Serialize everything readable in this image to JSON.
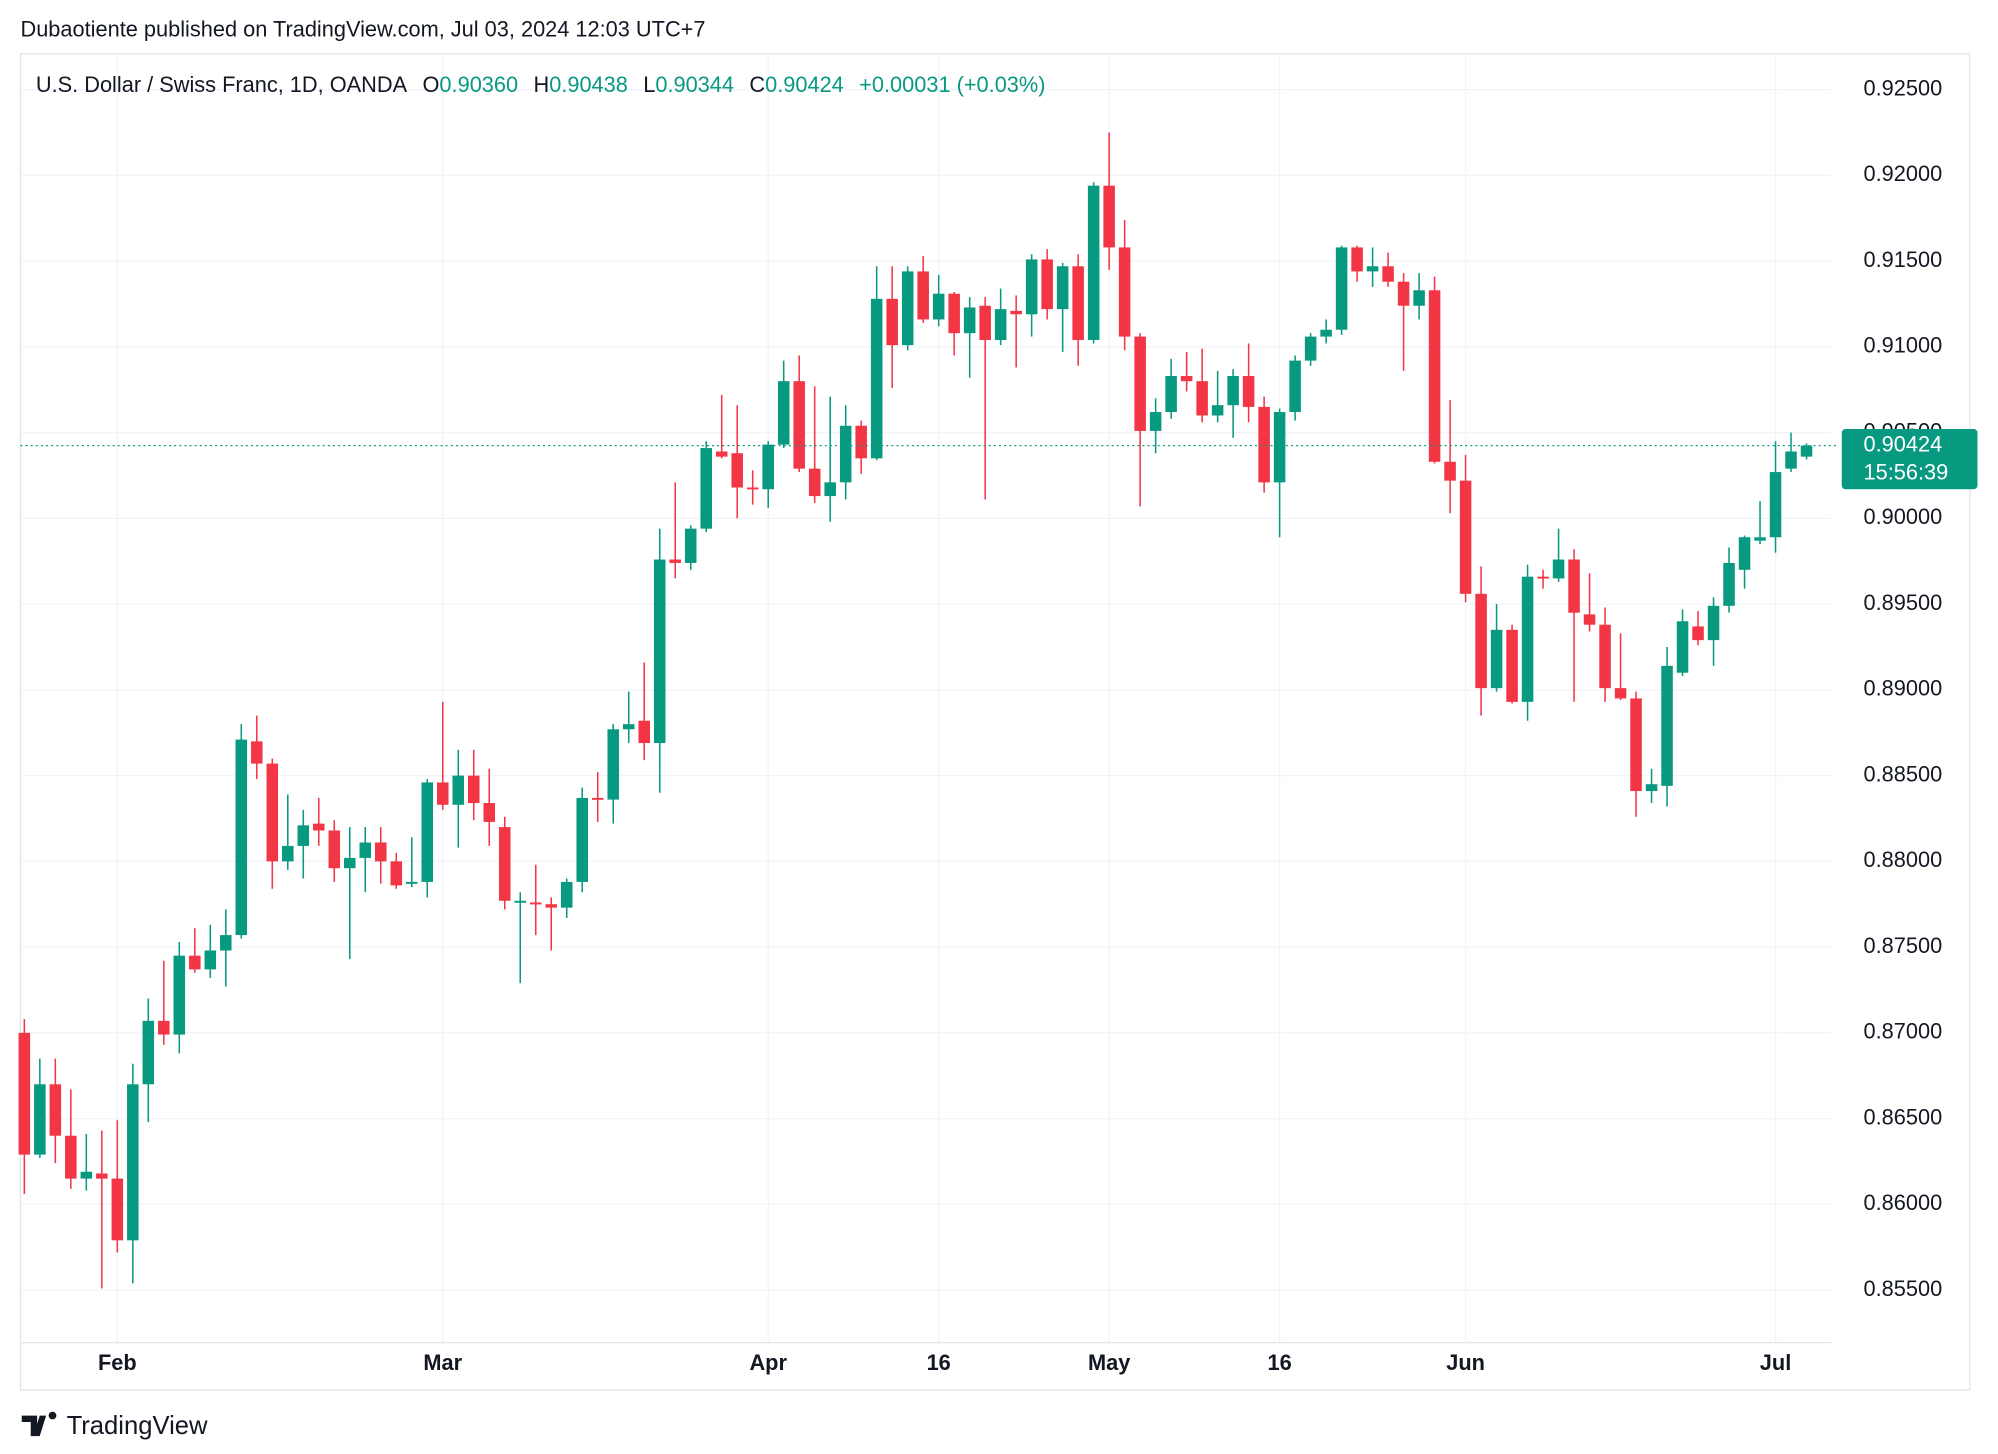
{
  "publisher": "Dubaotiente published on TradingView.com, Jul 03, 2024 12:03 UTC+7",
  "branding": "TradingView",
  "chart_data": {
    "type": "candlestick",
    "title": "U.S. Dollar / Swiss Franc, 1D, OANDA",
    "ohlc_legend": [
      {
        "key": "O",
        "label": "0.90360"
      },
      {
        "key": "H",
        "label": "0.90438"
      },
      {
        "key": "L",
        "label": "0.90344"
      },
      {
        "key": "C",
        "label": "0.90424"
      }
    ],
    "change": "+0.00031 (+0.03%)",
    "last_price": {
      "value": 0.90424,
      "label": "0.90424"
    },
    "countdown": "15:56:39",
    "up_color": "#089981",
    "down_color": "#f23645",
    "grid": true,
    "categories": [
      null,
      null,
      null,
      null,
      null,
      null,
      "Feb",
      null,
      null,
      null,
      null,
      null,
      null,
      null,
      null,
      null,
      null,
      null,
      null,
      null,
      null,
      null,
      null,
      null,
      null,
      null,
      null,
      "Mar",
      null,
      null,
      null,
      null,
      null,
      null,
      null,
      null,
      null,
      null,
      null,
      null,
      null,
      null,
      null,
      null,
      null,
      null,
      null,
      null,
      "Apr",
      null,
      null,
      null,
      null,
      null,
      null,
      null,
      null,
      null,
      null,
      "16",
      null,
      null,
      null,
      null,
      null,
      null,
      null,
      null,
      null,
      null,
      "May",
      null,
      null,
      null,
      null,
      null,
      null,
      null,
      null,
      null,
      null,
      "16",
      null,
      null,
      null,
      null,
      null,
      null,
      null,
      null,
      null,
      null,
      null,
      "Jun",
      null,
      null,
      null,
      null,
      null,
      null,
      null,
      null,
      null,
      null,
      null,
      null,
      null,
      null,
      null,
      null,
      null,
      null,
      null,
      "Jul",
      null,
      null
    ],
    "open": [
      0.87,
      0.8629,
      0.867,
      0.864,
      0.8615,
      0.8618,
      0.8615,
      0.8579,
      0.867,
      0.8707,
      0.8699,
      0.8745,
      0.8737,
      0.8748,
      0.8757,
      0.887,
      0.8857,
      0.88,
      0.8809,
      0.8822,
      0.8818,
      0.8796,
      0.8802,
      0.8811,
      0.88,
      0.8787,
      0.8788,
      0.8846,
      0.8833,
      0.885,
      0.8834,
      0.882,
      0.8776,
      0.8776,
      0.8775,
      0.8773,
      0.8788,
      0.8837,
      0.8836,
      0.8877,
      0.8882,
      0.8869,
      0.8976,
      0.8974,
      0.8994,
      0.9039,
      0.9038,
      0.9018,
      0.9017,
      0.9043,
      0.908,
      0.9029,
      0.9013,
      0.9021,
      0.9054,
      0.9035,
      0.9128,
      0.9101,
      0.9144,
      0.9116,
      0.9131,
      0.9108,
      0.9124,
      0.9104,
      0.9121,
      0.9119,
      0.9151,
      0.9122,
      0.9147,
      0.9104,
      0.9194,
      0.9158,
      0.9106,
      0.9051,
      0.9062,
      0.9083,
      0.908,
      0.906,
      0.9066,
      0.9083,
      0.9065,
      0.9021,
      0.9062,
      0.9092,
      0.9106,
      0.911,
      0.9158,
      0.9144,
      0.9147,
      0.9138,
      0.9124,
      0.9133,
      0.9033,
      0.9022,
      0.8956,
      0.8901,
      0.8935,
      0.8893,
      0.8966,
      0.8965,
      0.8976,
      0.8944,
      0.8938,
      0.8901,
      0.8895,
      0.8841,
      0.8844,
      0.891,
      0.8937,
      0.8929,
      0.8949,
      0.897,
      0.8987,
      0.8989,
      0.9029,
      0.9036
    ],
    "high": [
      0.8708,
      0.8685,
      0.8685,
      0.8667,
      0.8641,
      0.8643,
      0.8649,
      0.8682,
      0.872,
      0.8742,
      0.8753,
      0.8761,
      0.8763,
      0.8772,
      0.888,
      0.8885,
      0.886,
      0.8839,
      0.883,
      0.8837,
      0.8824,
      0.882,
      0.882,
      0.882,
      0.8805,
      0.8814,
      0.8848,
      0.8893,
      0.8865,
      0.8865,
      0.8854,
      0.8826,
      0.8782,
      0.8798,
      0.8779,
      0.879,
      0.8843,
      0.8852,
      0.888,
      0.8899,
      0.8916,
      0.8994,
      0.9021,
      0.8996,
      0.9045,
      0.9072,
      0.9066,
      0.9028,
      0.9045,
      0.9092,
      0.9095,
      0.9077,
      0.9071,
      0.9066,
      0.9057,
      0.9147,
      0.9147,
      0.9147,
      0.9153,
      0.9142,
      0.9132,
      0.9129,
      0.9129,
      0.9134,
      0.913,
      0.9154,
      0.9157,
      0.9149,
      0.9154,
      0.9196,
      0.9225,
      0.9174,
      0.9108,
      0.907,
      0.9093,
      0.9097,
      0.9099,
      0.9086,
      0.9087,
      0.9102,
      0.9071,
      0.9064,
      0.9095,
      0.9108,
      0.9116,
      0.9159,
      0.9159,
      0.9158,
      0.9155,
      0.9143,
      0.9143,
      0.9141,
      0.9069,
      0.9037,
      0.8972,
      0.895,
      0.8938,
      0.8973,
      0.897,
      0.8994,
      0.8982,
      0.8968,
      0.8948,
      0.8933,
      0.8899,
      0.8854,
      0.8925,
      0.8947,
      0.8946,
      0.8954,
      0.8983,
      0.899,
      0.901,
      0.9045,
      0.905,
      0.90438
    ],
    "low": [
      0.8606,
      0.8627,
      0.8624,
      0.8609,
      0.8608,
      0.8551,
      0.8572,
      0.8554,
      0.8648,
      0.8693,
      0.8688,
      0.8735,
      0.8732,
      0.8727,
      0.8755,
      0.8848,
      0.8784,
      0.8795,
      0.879,
      0.8809,
      0.8788,
      0.8743,
      0.8782,
      0.8787,
      0.8784,
      0.8785,
      0.8779,
      0.883,
      0.8808,
      0.8824,
      0.8809,
      0.8772,
      0.8729,
      0.8757,
      0.8748,
      0.8767,
      0.8782,
      0.8823,
      0.8822,
      0.8869,
      0.8859,
      0.884,
      0.8965,
      0.897,
      0.8992,
      0.9035,
      0.9,
      0.9008,
      0.9006,
      0.9041,
      0.9027,
      0.9009,
      0.8998,
      0.9011,
      0.9026,
      0.9034,
      0.9076,
      0.9098,
      0.9114,
      0.9112,
      0.9095,
      0.9082,
      0.9011,
      0.9101,
      0.9088,
      0.9106,
      0.9116,
      0.9097,
      0.9089,
      0.9102,
      0.9145,
      0.9098,
      0.9007,
      0.9038,
      0.9058,
      0.9074,
      0.9056,
      0.9056,
      0.9047,
      0.9056,
      0.9015,
      0.8989,
      0.9057,
      0.9089,
      0.9102,
      0.9107,
      0.9138,
      0.9135,
      0.9135,
      0.9086,
      0.9116,
      0.9032,
      0.9003,
      0.8951,
      0.8885,
      0.8899,
      0.8892,
      0.8882,
      0.8959,
      0.8963,
      0.8893,
      0.8934,
      0.8893,
      0.8894,
      0.8826,
      0.8834,
      0.8832,
      0.8908,
      0.8926,
      0.8914,
      0.8945,
      0.8959,
      0.8985,
      0.898,
      0.9027,
      0.90344
    ],
    "close": [
      0.8629,
      0.867,
      0.864,
      0.8615,
      0.8619,
      0.8615,
      0.8579,
      0.867,
      0.8707,
      0.8699,
      0.8745,
      0.8737,
      0.8748,
      0.8757,
      0.8871,
      0.8857,
      0.88,
      0.8809,
      0.8821,
      0.8818,
      0.8796,
      0.8802,
      0.8811,
      0.88,
      0.8786,
      0.8788,
      0.8846,
      0.8833,
      0.885,
      0.8834,
      0.8823,
      0.8777,
      0.8777,
      0.8775,
      0.8773,
      0.8788,
      0.8837,
      0.8836,
      0.8877,
      0.888,
      0.8869,
      0.8976,
      0.8974,
      0.8994,
      0.9041,
      0.9036,
      0.9018,
      0.9017,
      0.9043,
      0.908,
      0.9029,
      0.9013,
      0.9021,
      0.9054,
      0.9035,
      0.9128,
      0.9101,
      0.9144,
      0.9116,
      0.9131,
      0.9108,
      0.9123,
      0.9104,
      0.9122,
      0.9119,
      0.9151,
      0.9122,
      0.9147,
      0.9104,
      0.9194,
      0.9158,
      0.9106,
      0.9051,
      0.9062,
      0.9083,
      0.908,
      0.906,
      0.9066,
      0.9083,
      0.9065,
      0.9021,
      0.9062,
      0.9092,
      0.9106,
      0.911,
      0.9158,
      0.9144,
      0.9147,
      0.9138,
      0.9124,
      0.9133,
      0.9033,
      0.9022,
      0.8956,
      0.8901,
      0.8935,
      0.8893,
      0.8966,
      0.8965,
      0.8976,
      0.8945,
      0.8938,
      0.8901,
      0.8895,
      0.8841,
      0.8845,
      0.8914,
      0.894,
      0.8929,
      0.8949,
      0.8974,
      0.8989,
      0.8989,
      0.9027,
      0.9039,
      0.90424
    ],
    "ylim": [
      0.85194,
      0.92709
    ],
    "yticks": [
      {
        "value": 0.855,
        "label": "0.85500"
      },
      {
        "value": 0.86,
        "label": "0.86000"
      },
      {
        "value": 0.865,
        "label": "0.86500"
      },
      {
        "value": 0.87,
        "label": "0.87000"
      },
      {
        "value": 0.875,
        "label": "0.87500"
      },
      {
        "value": 0.88,
        "label": "0.88000"
      },
      {
        "value": 0.885,
        "label": "0.88500"
      },
      {
        "value": 0.89,
        "label": "0.89000"
      },
      {
        "value": 0.895,
        "label": "0.89500"
      },
      {
        "value": 0.9,
        "label": "0.90000"
      },
      {
        "value": 0.905,
        "label": "0.90500"
      },
      {
        "value": 0.91,
        "label": "0.91000"
      },
      {
        "value": 0.915,
        "label": "0.91500"
      },
      {
        "value": 0.92,
        "label": "0.92000"
      },
      {
        "value": 0.925,
        "label": "0.92500"
      }
    ]
  }
}
